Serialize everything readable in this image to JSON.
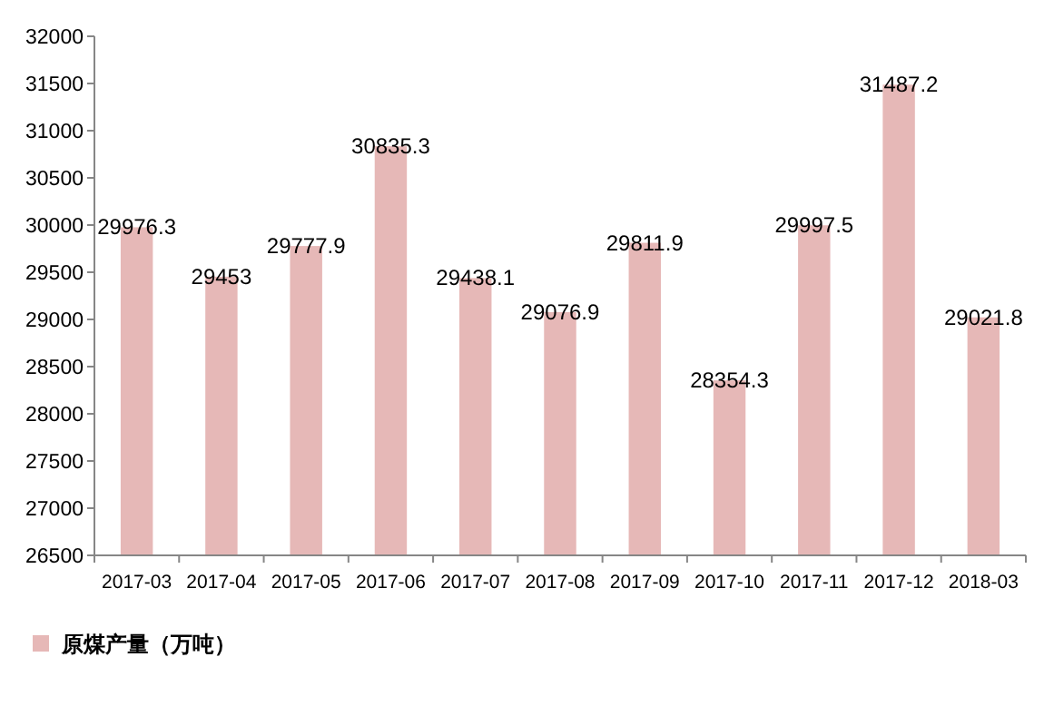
{
  "chart_data": {
    "type": "bar",
    "categories": [
      "2017-03",
      "2017-04",
      "2017-05",
      "2017-06",
      "2017-07",
      "2017-08",
      "2017-09",
      "2017-10",
      "2017-11",
      "2017-12",
      "2018-03"
    ],
    "series": [
      {
        "name": "原煤产量（万吨）",
        "color": "#e6b8b7",
        "values": [
          29976.3,
          29453,
          29777.9,
          30835.3,
          29438.1,
          29076.9,
          29811.9,
          28354.3,
          29997.5,
          31487.2,
          29021.8
        ]
      }
    ],
    "ylim": [
      26500,
      32000
    ],
    "yticks": [
      26500,
      27000,
      27500,
      28000,
      28500,
      29000,
      29500,
      30000,
      30500,
      31000,
      31500,
      32000
    ],
    "data_labels": true,
    "legend": "bottom left",
    "grid": false
  }
}
